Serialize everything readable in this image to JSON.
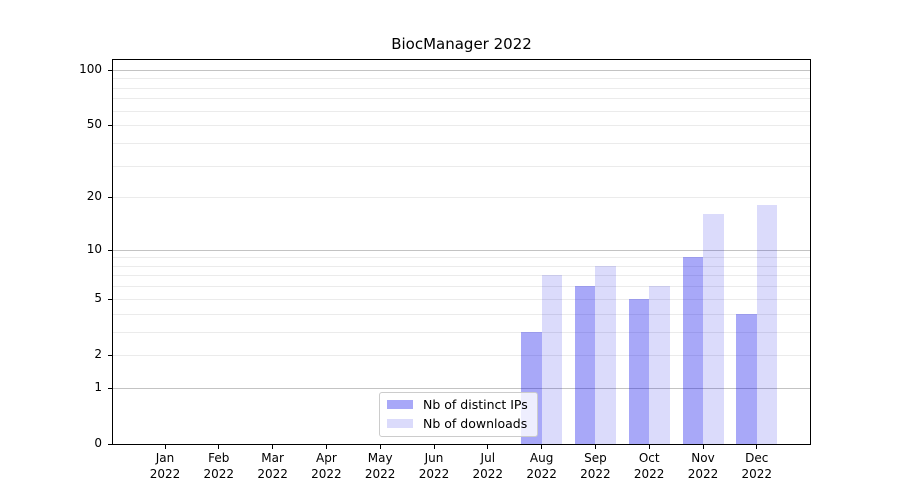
{
  "title": "BiocManager 2022",
  "chart_data": {
    "type": "bar",
    "title": "BiocManager 2022",
    "categories": [
      "Jan",
      "Feb",
      "Mar",
      "Apr",
      "May",
      "Jun",
      "Jul",
      "Aug",
      "Sep",
      "Oct",
      "Nov",
      "Dec"
    ],
    "year_label": "2022",
    "series": [
      {
        "name": "Nb of distinct IPs",
        "color": "rgba(0,0,234,0.34)",
        "values": [
          0,
          0,
          0,
          0,
          0,
          0,
          0,
          3,
          6,
          5,
          9,
          4
        ]
      },
      {
        "name": "Nb of downloads",
        "color": "rgba(0,0,230,0.14)",
        "values": [
          0,
          0,
          0,
          0,
          0,
          0,
          0,
          7,
          8,
          6,
          16,
          18
        ]
      }
    ],
    "xlabel": "",
    "ylabel": "",
    "yscale": "log1p",
    "ylim": [
      0,
      113
    ],
    "yticks": [
      0,
      1,
      2,
      5,
      10,
      20,
      50,
      100
    ],
    "major_gridlines": [
      1,
      10,
      100
    ],
    "minor_gridlines": [
      2,
      3,
      4,
      5,
      6,
      7,
      8,
      9,
      20,
      30,
      40,
      50,
      60,
      70,
      80,
      90
    ],
    "grid": "horizontal-only",
    "legend_position": "lower-center",
    "colors": {
      "major_grid": "#c3c3c3",
      "minor_grid": "#ebebeb",
      "spine": "#000000",
      "text": "#000000"
    }
  }
}
